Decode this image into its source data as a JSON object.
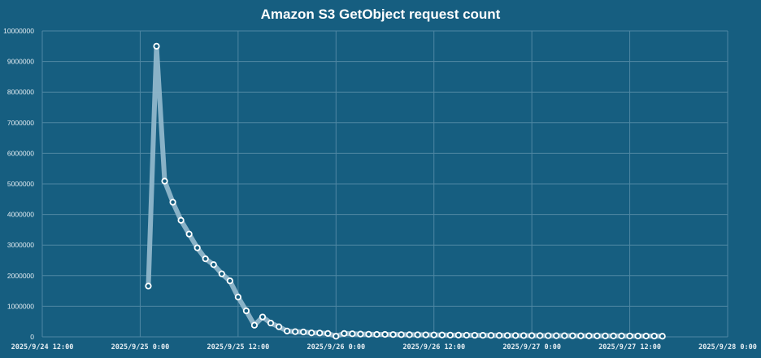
{
  "chart_data": {
    "type": "line",
    "title": "Amazon S3 GetObject request count",
    "xlabel": "",
    "ylabel": "",
    "ylim": [
      0,
      10000000
    ],
    "yticks": [
      0,
      1000000,
      2000000,
      3000000,
      4000000,
      5000000,
      6000000,
      7000000,
      8000000,
      9000000,
      10000000
    ],
    "xticks": [
      "2025/9/24 12:00",
      "2025/9/25 0:00",
      "2025/9/25 12:00",
      "2025/9/26 0:00",
      "2025/9/26 12:00",
      "2025/9/27 0:00",
      "2025/9/27 12:00",
      "2025/9/28 0:00"
    ],
    "xrange_hours_from_first_tick": [
      0,
      84
    ],
    "grid": true,
    "legend": "none",
    "colors": {
      "background": "#165e80",
      "line": "#8fb6ca",
      "marker_stroke": "#ffffff",
      "marker_fill": "#165e80",
      "grid": "#4f87a3",
      "text": "#ffffff"
    },
    "series": [
      {
        "name": "GetObject request count",
        "start": "2025/9/25 1:00",
        "interval_hours": 1,
        "start_offset_hours": 13,
        "values": [
          1660000,
          9500000,
          5090000,
          4400000,
          3810000,
          3360000,
          2910000,
          2550000,
          2360000,
          2060000,
          1830000,
          1300000,
          850000,
          380000,
          650000,
          450000,
          330000,
          190000,
          170000,
          160000,
          130000,
          125000,
          110000,
          20000,
          110000,
          100000,
          90000,
          85000,
          80000,
          80000,
          75000,
          72000,
          70000,
          68000,
          65000,
          62000,
          60000,
          58000,
          56000,
          54000,
          52000,
          50000,
          48000,
          46000,
          45000,
          44000,
          42000,
          40000,
          39000,
          38000,
          37000,
          36000,
          35000,
          34000,
          33000,
          32000,
          31000,
          30000,
          29000,
          28000,
          27000,
          26000,
          25000,
          20000
        ]
      }
    ]
  }
}
